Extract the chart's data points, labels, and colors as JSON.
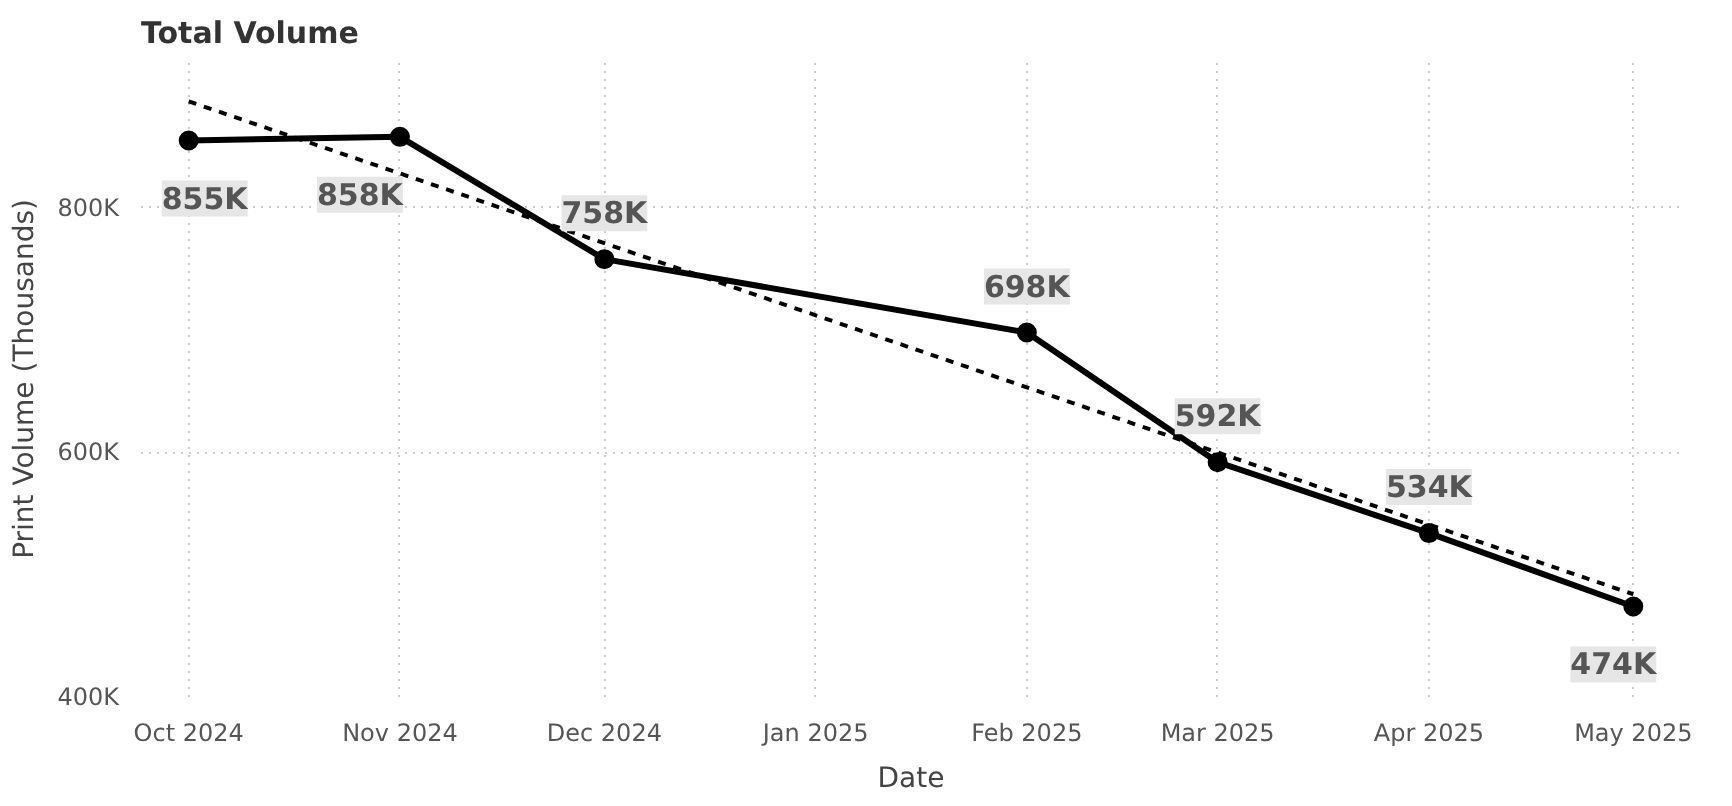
{
  "chart_data": {
    "type": "line",
    "title": "Total Volume",
    "xlabel": "Date",
    "ylabel": "Print Volume (Thousands)",
    "x": [
      "2024-10",
      "2024-11",
      "2024-12",
      "2025-02",
      "2025-03",
      "2025-04",
      "2025-05"
    ],
    "series": [
      {
        "color": "#000000",
        "values": [
          855,
          858,
          758,
          698,
          592,
          534,
          474
        ],
        "value_labels": [
          "855K",
          "858K",
          "758K",
          "698K",
          "592K",
          "534K",
          "474K"
        ],
        "marker": "circle",
        "line_style": "solid"
      },
      {
        "type": "line",
        "x": [
          "2024-10",
          "2025-05"
        ],
        "color": "#000000",
        "values": [
          887,
          484
        ],
        "marker": "none",
        "line_style": "dashed"
      }
    ],
    "xlim": [
      "2024-09-24",
      "2025-05-08"
    ],
    "xticks": [
      {
        "value": "2024-10",
        "label": "Oct 2024"
      },
      {
        "value": "2024-11",
        "label": "Nov 2024"
      },
      {
        "value": "2024-12",
        "label": "Dec 2024"
      },
      {
        "value": "2025-01",
        "label": "Jan 2025"
      },
      {
        "value": "2025-02",
        "label": "Feb 2025"
      },
      {
        "value": "2025-03",
        "label": "Mar 2025"
      },
      {
        "value": "2025-04",
        "label": "Apr 2025"
      },
      {
        "value": "2025-05",
        "label": "May 2025"
      }
    ],
    "ylim": [
      400,
      920
    ],
    "yticks": [
      {
        "value": 400,
        "label": "400K"
      },
      {
        "value": 600,
        "label": "600K"
      },
      {
        "value": 800,
        "label": "800K"
      }
    ],
    "grid": true
  }
}
